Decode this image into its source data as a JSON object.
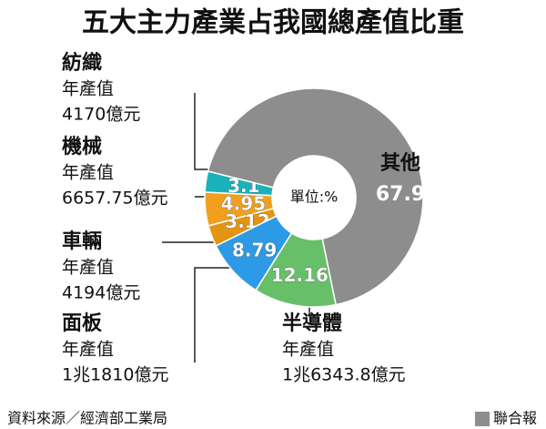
{
  "chart_data": {
    "type": "donut",
    "title": "五大主力產業占我國總產值比重",
    "center_label": "單位:%",
    "categories": [
      "紡織",
      "機械",
      "車輛",
      "面板",
      "半導體",
      "其他"
    ],
    "values": [
      3.1,
      4.95,
      3.12,
      8.79,
      12.16,
      67.9
    ],
    "colors": [
      "#19b2b8",
      "#f0a01e",
      "#e29412",
      "#2c9ae6",
      "#68bf6a",
      "#8d8d8d"
    ],
    "output_label": "年產值",
    "outputs": [
      "4170億元",
      "6657.75億元",
      "4194億元",
      "1兆1810億元",
      "1兆6343.8億元",
      null
    ],
    "source": "資料來源／經濟部工業局",
    "publisher": "聯合報"
  }
}
